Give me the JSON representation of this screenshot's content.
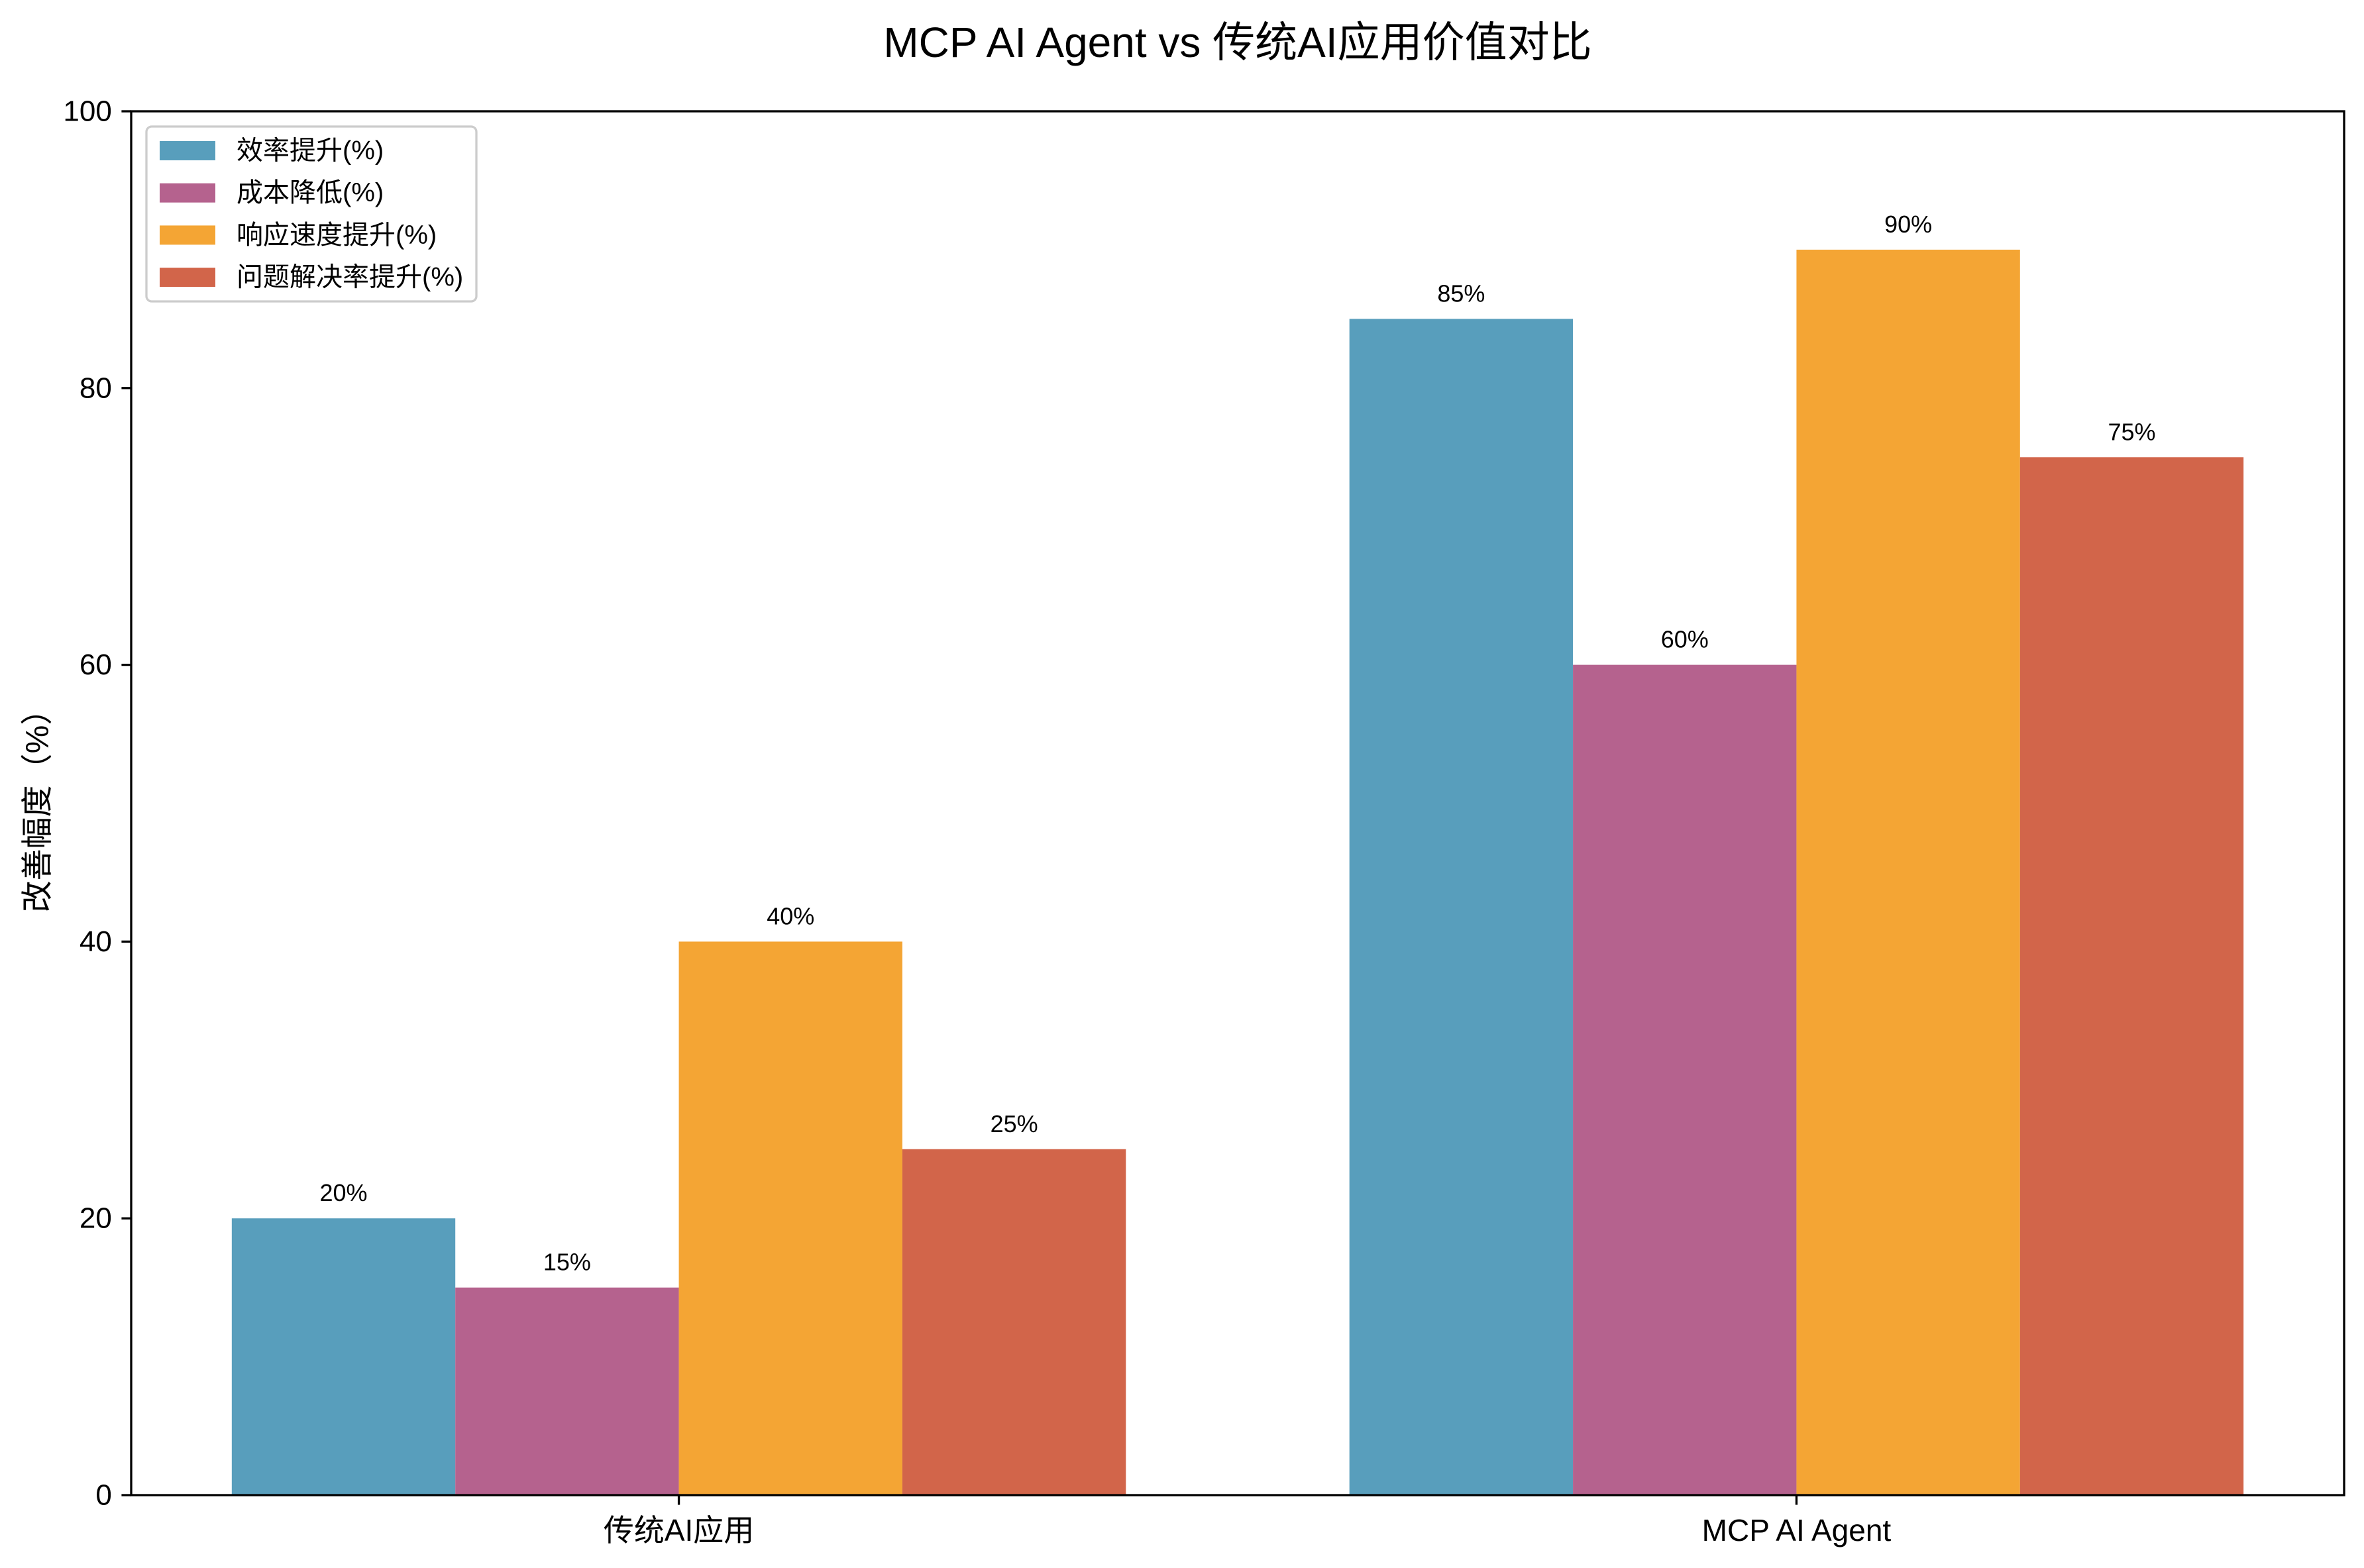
{
  "chart_data": {
    "type": "bar",
    "title": "MCP AI Agent vs 传统AI应用价值对比",
    "ylabel": "改善幅度（%）",
    "categories": [
      "传统AI应用",
      "MCP AI Agent"
    ],
    "series": [
      {
        "name": "效率提升(%)",
        "values": [
          20,
          85
        ],
        "labels": [
          "20%",
          "85%"
        ],
        "color": "#589EBC"
      },
      {
        "name": "成本降低(%)",
        "values": [
          15,
          60
        ],
        "labels": [
          "15%",
          "60%"
        ],
        "color": "#B5628E"
      },
      {
        "name": "响应速度提升(%)",
        "values": [
          40,
          90
        ],
        "labels": [
          "40%",
          "90%"
        ],
        "color": "#F4A534"
      },
      {
        "name": "问题解决率提升(%)",
        "values": [
          25,
          75
        ],
        "labels": [
          "25%",
          "75%"
        ],
        "color": "#D2654A"
      }
    ],
    "ylim": [
      0,
      100
    ],
    "yticks": [
      0,
      20,
      40,
      60,
      80,
      100
    ],
    "ytick_labels": [
      "0",
      "20",
      "40",
      "60",
      "80",
      "100"
    ],
    "grid": false,
    "legend": "top-left"
  }
}
